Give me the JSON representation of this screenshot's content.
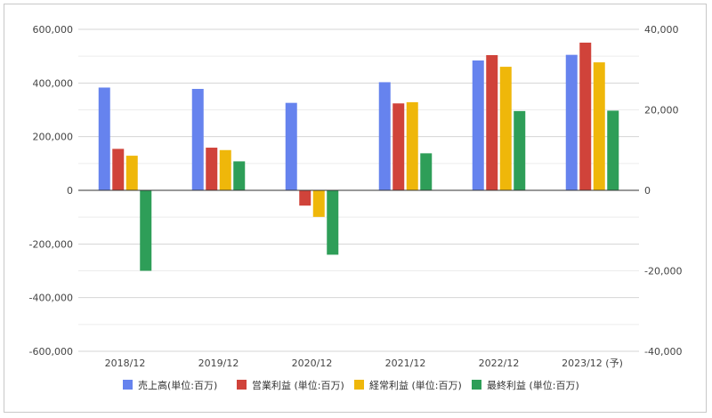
{
  "chart_data": {
    "type": "bar",
    "categories": [
      "2018/12",
      "2019/12",
      "2020/12",
      "2021/12",
      "2022/12",
      "2023/12 (予)"
    ],
    "series": [
      {
        "name": "売上高(単位:百万)",
        "axis": "left",
        "color": "#6683ee",
        "values": [
          383000,
          378000,
          326000,
          403000,
          484000,
          505000
        ]
      },
      {
        "name": "営業利益 (単位:百万)",
        "axis": "right",
        "color": "#d0433a",
        "values": [
          10300,
          10600,
          -3800,
          21600,
          33600,
          36700
        ]
      },
      {
        "name": "経常利益 (単位:百万)",
        "axis": "right",
        "color": "#efb70a",
        "values": [
          8600,
          10000,
          -6600,
          21900,
          30700,
          31800
        ]
      },
      {
        "name": "最終利益 (単位:百万)",
        "axis": "right",
        "color": "#2e9e58",
        "values": [
          -20000,
          7200,
          -16000,
          9200,
          19700,
          19800
        ]
      }
    ],
    "y_left": {
      "lim": [
        -600000,
        600000
      ],
      "ticks": [
        "600,000",
        "400,000",
        "200,000",
        "0",
        "-200,000",
        "-400,000",
        "-600,000"
      ]
    },
    "y_right": {
      "lim": [
        -40000,
        40000
      ],
      "ticks": [
        "40,000",
        "20,000",
        "0",
        "-20,000",
        "-40,000"
      ]
    },
    "grid": true,
    "legend_position": "bottom"
  }
}
